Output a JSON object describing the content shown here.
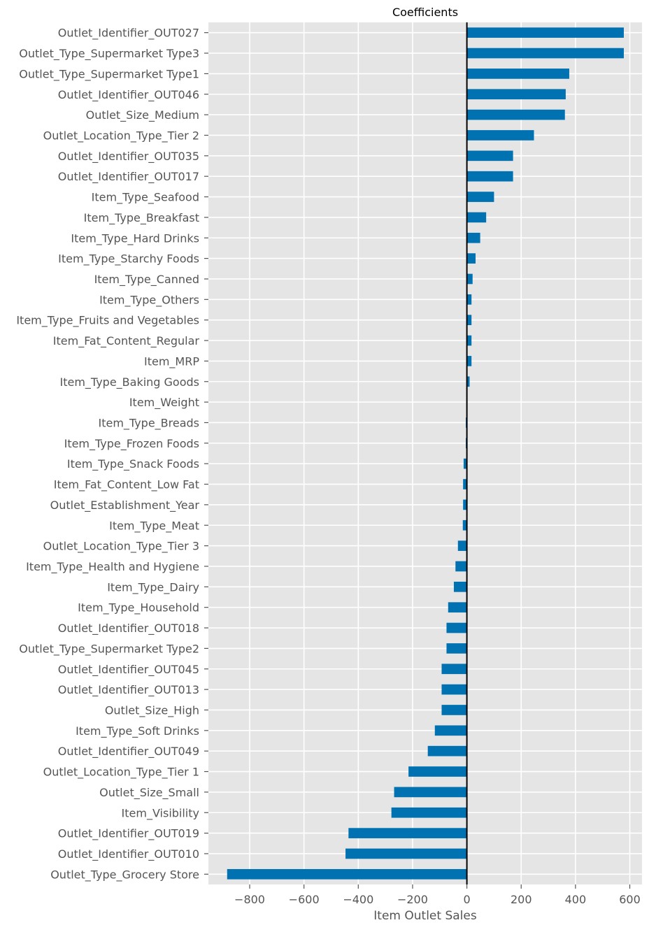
{
  "chart_data": {
    "type": "bar",
    "orientation": "horizontal",
    "title": "Coefficients",
    "xlabel": "Item Outlet Sales",
    "ylabel": "",
    "xlim": [
      -952,
      645
    ],
    "xticks": [
      -800,
      -600,
      -400,
      -200,
      0,
      200,
      400,
      600
    ],
    "xtick_labels": [
      "−800",
      "−600",
      "−400",
      "−200",
      "0",
      "200",
      "400",
      "600"
    ],
    "grid": true,
    "legend": "none",
    "zero_line": true,
    "colors": {
      "bar": "#0072B2",
      "background": "#E5E5E5",
      "grid": "#FFFFFF",
      "zero_line": "#000000"
    },
    "categories": [
      "Outlet_Identifier_OUT027",
      "Outlet_Type_Supermarket Type3",
      "Outlet_Type_Supermarket Type1",
      "Outlet_Identifier_OUT046",
      "Outlet_Size_Medium",
      "Outlet_Location_Type_Tier 2",
      "Outlet_Identifier_OUT035",
      "Outlet_Identifier_OUT017",
      "Item_Type_Seafood",
      "Item_Type_Breakfast",
      "Item_Type_Hard Drinks",
      "Item_Type_Starchy Foods",
      "Item_Type_Canned",
      "Item_Type_Others",
      "Item_Type_Fruits and Vegetables",
      "Item_Fat_Content_Regular",
      "Item_MRP",
      "Item_Type_Baking Goods",
      "Item_Weight",
      "Item_Type_Breads",
      "Item_Type_Frozen Foods",
      "Item_Type_Snack Foods",
      "Item_Fat_Content_Low Fat",
      "Outlet_Establishment_Year",
      "Item_Type_Meat",
      "Outlet_Location_Type_Tier 3",
      "Item_Type_Health and Hygiene",
      "Item_Type_Dairy",
      "Item_Type_Household",
      "Outlet_Identifier_OUT018",
      "Outlet_Type_Supermarket Type2",
      "Outlet_Identifier_OUT045",
      "Outlet_Identifier_OUT013",
      "Outlet_Size_High",
      "Item_Type_Soft Drinks",
      "Outlet_Identifier_OUT049",
      "Outlet_Location_Type_Tier 1",
      "Outlet_Size_Small",
      "Item_Visibility",
      "Outlet_Identifier_OUT019",
      "Outlet_Identifier_OUT010",
      "Outlet_Type_Grocery Store"
    ],
    "values": [
      578,
      578,
      377,
      364,
      361,
      247,
      170,
      170,
      100,
      71,
      49,
      32,
      21,
      17,
      17,
      17,
      17,
      10,
      0,
      -4,
      -4,
      -12,
      -14,
      -14,
      -15,
      -33,
      -42,
      -48,
      -69,
      -75,
      -75,
      -93,
      -93,
      -93,
      -118,
      -144,
      -215,
      -268,
      -278,
      -436,
      -447,
      -883
    ]
  }
}
